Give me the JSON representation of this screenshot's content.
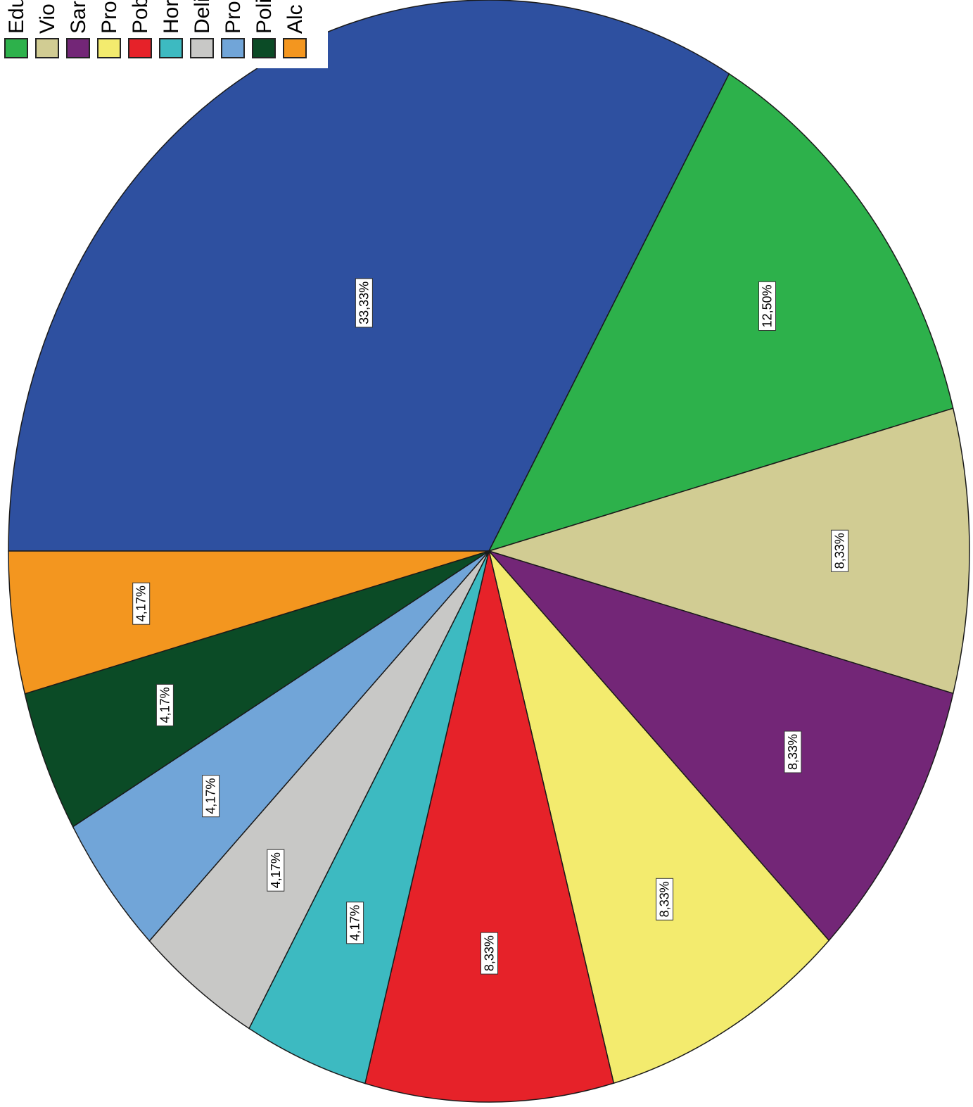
{
  "chart_data": {
    "type": "pie",
    "slices": [
      {
        "value": 33.33,
        "label": "33,33%",
        "color": "#2E50A0",
        "legend": ""
      },
      {
        "value": 12.5,
        "label": "12,50%",
        "color": "#2DB14B",
        "legend": "Edu"
      },
      {
        "value": 8.33,
        "label": "8,33%",
        "color": "#D1CC93",
        "legend": "Vio"
      },
      {
        "value": 8.33,
        "label": "8,33%",
        "color": "#732677",
        "legend": "Sar"
      },
      {
        "value": 8.33,
        "label": "8,33%",
        "color": "#F3EB6E",
        "legend": "Pro"
      },
      {
        "value": 8.33,
        "label": "8,33%",
        "color": "#E62229",
        "legend": "Pob"
      },
      {
        "value": 4.17,
        "label": "4,17%",
        "color": "#3DBAC1",
        "legend": "Hor"
      },
      {
        "value": 4.17,
        "label": "4,17%",
        "color": "#C8C8C6",
        "legend": "Deli"
      },
      {
        "value": 4.17,
        "label": "4,17%",
        "color": "#71A5D8",
        "legend": "Pro"
      },
      {
        "value": 4.17,
        "label": "4,17%",
        "color": "#0B4B26",
        "legend": "Poli"
      },
      {
        "value": 4.17,
        "label": "4,17%",
        "color": "#F3961F",
        "legend": "Alc"
      }
    ],
    "legend_position": "top-left",
    "label_orientation": "rotated-vertical"
  }
}
